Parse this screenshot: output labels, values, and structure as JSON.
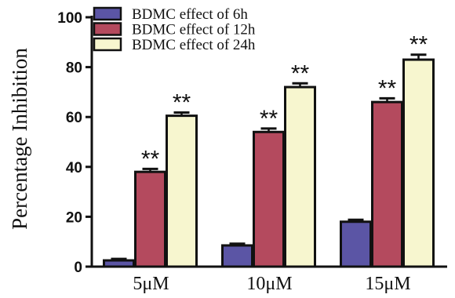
{
  "chart_data": {
    "type": "bar",
    "categories": [
      "5μM",
      "10μM",
      "15μM"
    ],
    "series": [
      {
        "name": "BDMC effect of 6h",
        "color": "#5b55a5",
        "values": [
          2.5,
          8.5,
          18
        ],
        "errors": [
          0.6,
          0.7,
          0.8
        ],
        "significance": [
          "",
          "",
          ""
        ]
      },
      {
        "name": "BDMC effect of 12h",
        "color": "#b44a5e",
        "values": [
          38,
          54,
          66
        ],
        "errors": [
          1.2,
          1.4,
          1.5
        ],
        "significance": [
          "**",
          "**",
          "**"
        ]
      },
      {
        "name": "BDMC effect of 24h",
        "color": "#f7f6cf",
        "values": [
          60.5,
          72,
          83
        ],
        "errors": [
          1.3,
          1.5,
          2.0
        ],
        "significance": [
          "**",
          "**",
          "**"
        ]
      }
    ],
    "ylabel": "Percentage Inhibition",
    "xlabel": "",
    "ylim": [
      0,
      100
    ],
    "yticks": [
      0,
      20,
      40,
      60,
      80,
      100
    ],
    "legend_position": "top-left",
    "grid": false
  }
}
